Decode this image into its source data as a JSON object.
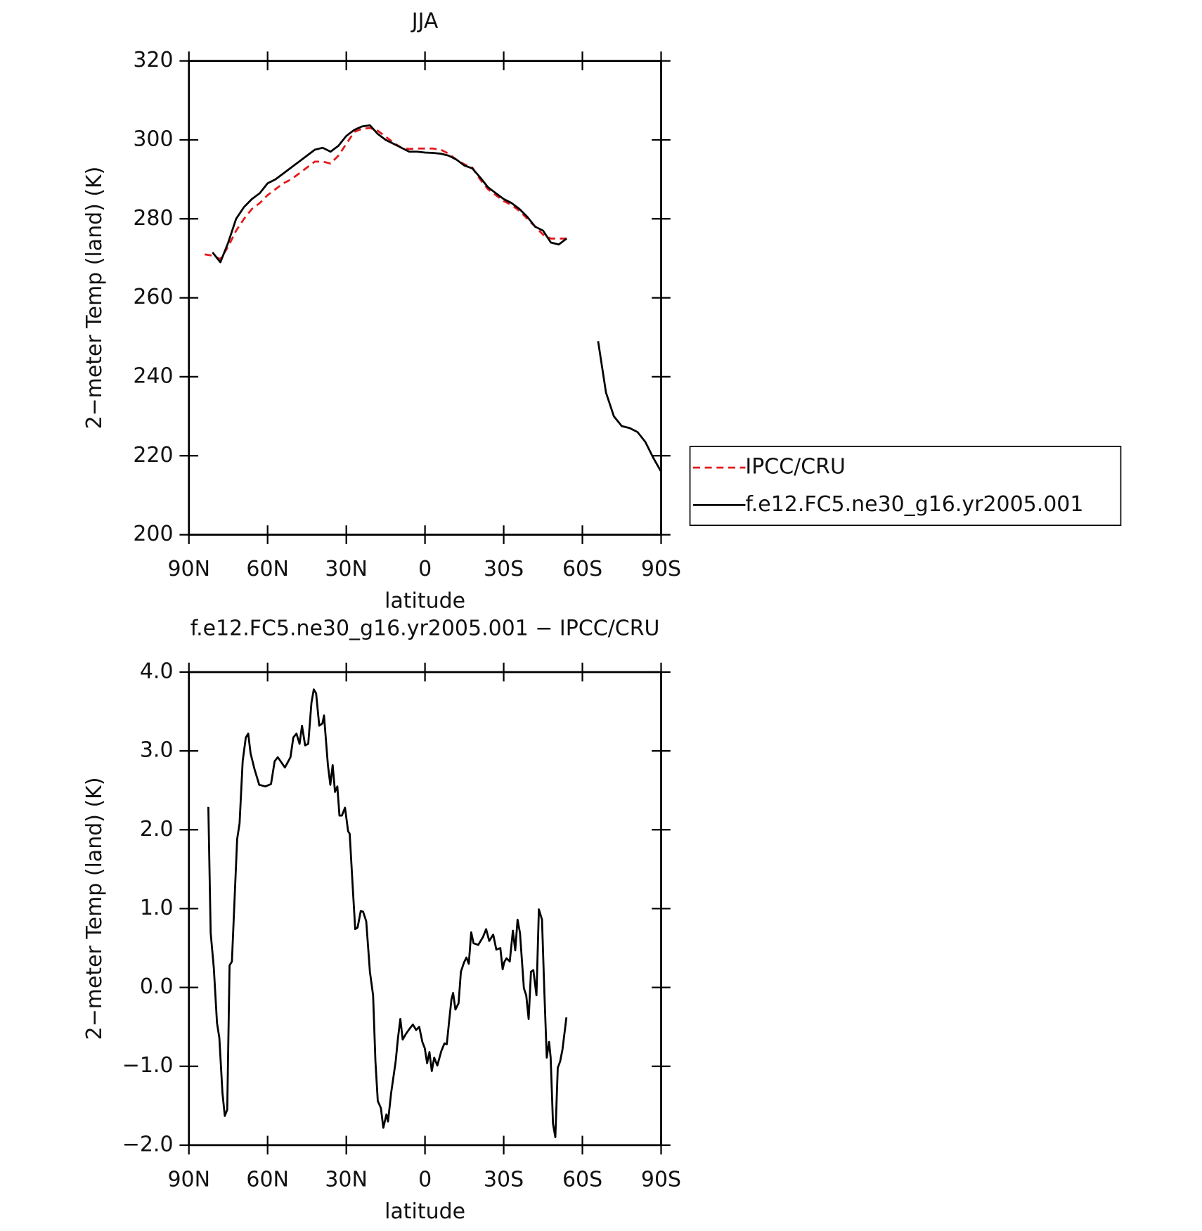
{
  "chart_data": [
    {
      "type": "line",
      "title": "JJA",
      "xlabel": "latitude",
      "ylabel": "2−meter Temp (land) (K)",
      "xlim": [
        90,
        -90
      ],
      "xticks": [
        {
          "value": 90,
          "label": "90N"
        },
        {
          "value": 60,
          "label": "60N"
        },
        {
          "value": 30,
          "label": "30N"
        },
        0,
        {
          "value": -30,
          "label": "30S"
        },
        {
          "value": -60,
          "label": "60S"
        },
        {
          "value": -90,
          "label": "90S"
        }
      ],
      "ylim": [
        200,
        320
      ],
      "yticks": [
        200,
        220,
        240,
        260,
        280,
        300,
        320
      ],
      "legend": "outside-right",
      "x": [
        84,
        81,
        78,
        75,
        72,
        69,
        66,
        63,
        60,
        57,
        54,
        51,
        48,
        45,
        42,
        39,
        36,
        33,
        30,
        27,
        24,
        21,
        18,
        15,
        12,
        9,
        6,
        3,
        0,
        -3,
        -6,
        -9,
        -12,
        -15,
        -18,
        -21,
        -24,
        -27,
        -30,
        -33,
        -36,
        -39,
        -42,
        -45,
        -48,
        -51,
        -54,
        -57,
        -60,
        -63,
        -66,
        -69,
        -72,
        -75,
        -78,
        -81,
        -84,
        -87,
        -90
      ],
      "series": [
        {
          "name": "IPCC/CRU",
          "color": "#e41a1c",
          "line_style": "dashed",
          "values": [
            271,
            270.7,
            269.8,
            273,
            277,
            280,
            282.5,
            284,
            286,
            287.5,
            289,
            290,
            291.5,
            293,
            294.5,
            294.5,
            294,
            296,
            299,
            302,
            302.8,
            303,
            302.3,
            300.8,
            299.3,
            298,
            297.7,
            297.8,
            297.8,
            297.8,
            297.5,
            296.5,
            295,
            293.8,
            293,
            290,
            287.5,
            286,
            284.5,
            283.5,
            282,
            280,
            278,
            276,
            275,
            275,
            275,
            null,
            null,
            null,
            null,
            null,
            null,
            null,
            null,
            null,
            null,
            null,
            null
          ]
        },
        {
          "name": "f.e12.FC5.ne30_g16.yr2005.001",
          "color": "#000000",
          "line_style": "solid",
          "values": [
            null,
            271.5,
            269,
            274,
            280,
            283,
            285,
            286.5,
            289,
            290,
            291.5,
            293,
            294.5,
            296,
            297.5,
            298,
            297,
            298.5,
            301,
            302.5,
            303.4,
            303.7,
            301.5,
            300,
            299,
            298,
            297,
            297,
            296.8,
            296.7,
            296.5,
            296,
            295,
            293.5,
            292.8,
            290.5,
            288,
            286.5,
            285,
            284,
            282.5,
            280.5,
            278,
            277,
            274,
            273.5,
            275,
            null,
            null,
            null,
            249,
            236,
            230,
            227.5,
            227,
            226,
            223.5,
            219.5,
            216
          ]
        }
      ]
    },
    {
      "type": "line",
      "title": "f.e12.FC5.ne30_g16.yr2005.001 − IPCC/CRU",
      "xlabel": "latitude",
      "ylabel": "2−meter Temp (land) (K)",
      "xlim": [
        90,
        -90
      ],
      "xticks": [
        {
          "value": 90,
          "label": "90N"
        },
        {
          "value": 60,
          "label": "60N"
        },
        {
          "value": 30,
          "label": "30N"
        },
        0,
        {
          "value": -30,
          "label": "30S"
        },
        {
          "value": -60,
          "label": "60S"
        },
        {
          "value": -90,
          "label": "90S"
        }
      ],
      "ylim": [
        -2,
        4
      ],
      "yticks": [
        {
          "value": -2,
          "label": "−2.0"
        },
        {
          "value": -1,
          "label": "−1.0"
        },
        {
          "value": 0,
          "label": "0.0"
        },
        {
          "value": 1,
          "label": "1.0"
        },
        {
          "value": 2,
          "label": "2.0"
        },
        {
          "value": 3,
          "label": "3.0"
        },
        {
          "value": 4,
          "label": "4.0"
        }
      ],
      "x": [
        82.6,
        81.7,
        80.5,
        79.3,
        78.4,
        77.2,
        76.3,
        75.4,
        74.5,
        73.6,
        71.6,
        70.7,
        69.5,
        68.3,
        67.4,
        66.5,
        65.0,
        63.2,
        60.8,
        58.7,
        57.3,
        56.1,
        53.4,
        51.3,
        50.2,
        49.0,
        47.8,
        46.9,
        45.7,
        44.5,
        43.3,
        42.4,
        41.5,
        40.3,
        39.1,
        38.5,
        37.0,
        36.1,
        35.2,
        34.3,
        33.4,
        32.6,
        31.7,
        30.5,
        29.3,
        28.7,
        27.5,
        26.6,
        25.7,
        24.5,
        23.6,
        22.4,
        21.0,
        19.8,
        18.9,
        18.0,
        16.8,
        15.9,
        14.7,
        14.1,
        12.9,
        11.2,
        10.3,
        9.4,
        8.5,
        7.3,
        5.8,
        4.6,
        3.4,
        2.2,
        1.0,
        0.1,
        -0.8,
        -1.7,
        -2.6,
        -3.5,
        -4.7,
        -6.2,
        -7.4,
        -8.3,
        -9.2,
        -10.1,
        -10.7,
        -11.6,
        -12.8,
        -13.7,
        -14.9,
        -15.8,
        -16.7,
        -17.6,
        -18.5,
        -20.3,
        -22.1,
        -23.3,
        -24.5,
        -26.0,
        -27.2,
        -28.7,
        -29.6,
        -30.2,
        -31.1,
        -32.3,
        -33.5,
        -34.4,
        -35.3,
        -36.2,
        -37.7,
        -38.6,
        -39.5,
        -40.4,
        -41.3,
        -42.5,
        -43.4,
        -44.6,
        -45.5,
        -46.4,
        -47.3,
        -47.9,
        -48.8,
        -49.7,
        -50.6,
        -51.5,
        -52.4,
        -53.9
      ],
      "series": [
        {
          "color": "#000000",
          "line_style": "solid",
          "values": [
            2.29,
            0.69,
            0.25,
            -0.45,
            -0.64,
            -1.34,
            -1.63,
            -1.55,
            0.28,
            0.33,
            1.88,
            2.08,
            2.87,
            3.17,
            3.22,
            2.97,
            2.77,
            2.57,
            2.55,
            2.58,
            2.87,
            2.92,
            2.79,
            2.92,
            3.17,
            3.22,
            3.09,
            3.32,
            3.07,
            3.09,
            3.61,
            3.78,
            3.73,
            3.32,
            3.35,
            3.45,
            2.82,
            2.57,
            2.82,
            2.48,
            2.55,
            2.18,
            2.18,
            2.28,
            1.98,
            1.95,
            1.24,
            0.74,
            0.76,
            0.97,
            0.96,
            0.84,
            0.2,
            -0.1,
            -0.94,
            -1.44,
            -1.53,
            -1.78,
            -1.61,
            -1.7,
            -1.34,
            -0.94,
            -0.64,
            -0.4,
            -0.66,
            -0.59,
            -0.52,
            -0.47,
            -0.54,
            -0.5,
            -0.69,
            -0.77,
            -0.96,
            -0.82,
            -1.06,
            -0.89,
            -0.99,
            -0.81,
            -0.71,
            -0.72,
            -0.43,
            -0.15,
            -0.07,
            -0.28,
            -0.2,
            0.2,
            0.32,
            0.38,
            0.3,
            0.7,
            0.56,
            0.54,
            0.64,
            0.74,
            0.59,
            0.67,
            0.48,
            0.5,
            0.23,
            0.32,
            0.37,
            0.33,
            0.72,
            0.47,
            0.86,
            0.69,
            -0.01,
            -0.1,
            -0.4,
            0.2,
            0.22,
            -0.1,
            0.99,
            0.86,
            -0.05,
            -0.89,
            -0.69,
            -0.89,
            -1.73,
            -1.9,
            -1.02,
            -0.94,
            -0.79,
            -0.38
          ]
        }
      ]
    }
  ]
}
